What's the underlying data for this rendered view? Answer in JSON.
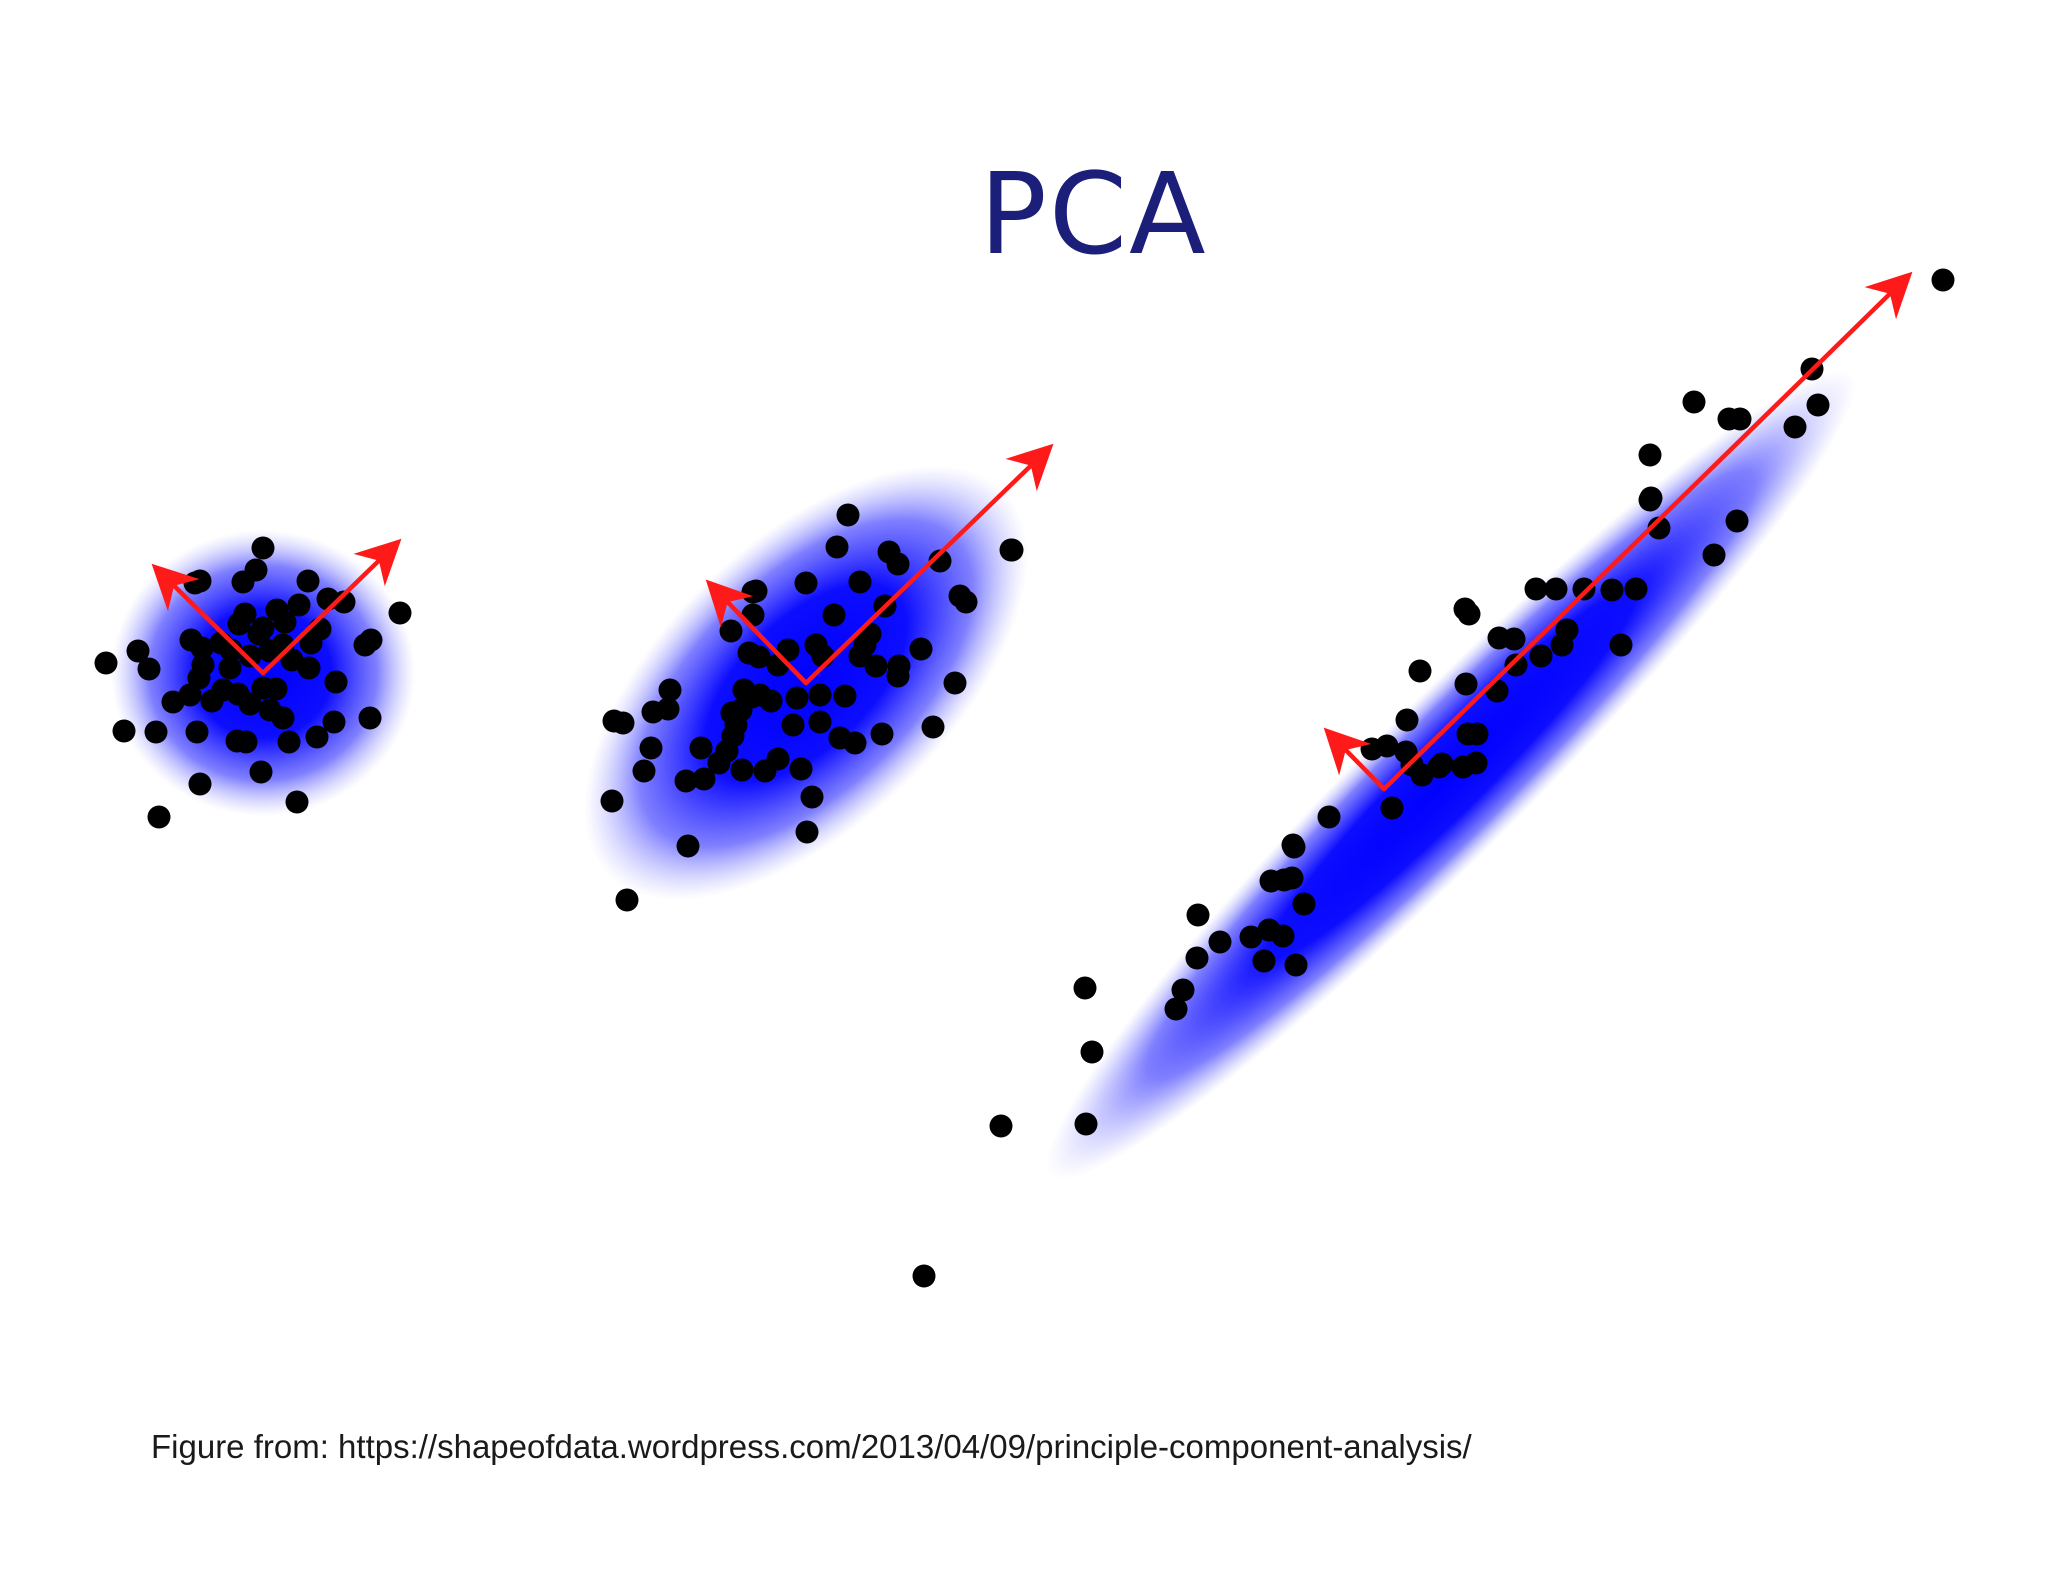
{
  "slide": {
    "title": "PCA",
    "caption": "Figure from: https://shapeofdata.wordpress.com/2013/04/09/principle-component-analysis/"
  },
  "colors": {
    "title": "#1b1f7a",
    "cloud_core": "#0000ff",
    "points": "#000000",
    "arrows": "#ff1a1a"
  },
  "icons": [
    "arrow-head-icon"
  ],
  "panels": [
    {
      "name": "round-cluster",
      "points": [
        [
          263,
          548
        ],
        [
          256,
          570
        ],
        [
          243,
          582
        ],
        [
          195,
          583
        ],
        [
          200,
          581
        ],
        [
          308,
          581
        ],
        [
          328,
          599
        ],
        [
          344,
          602
        ],
        [
          277,
          610
        ],
        [
          299,
          605
        ],
        [
          245,
          614
        ],
        [
          285,
          622
        ],
        [
          263,
          628
        ],
        [
          239,
          624
        ],
        [
          259,
          634
        ],
        [
          191,
          640
        ],
        [
          106,
          663
        ],
        [
          149,
          669
        ],
        [
          138,
          651
        ],
        [
          202,
          648
        ],
        [
          231,
          650
        ],
        [
          221,
          643
        ],
        [
          311,
          643
        ],
        [
          371,
          640
        ],
        [
          365,
          645
        ],
        [
          400,
          613
        ],
        [
          370,
          718
        ],
        [
          199,
          678
        ],
        [
          223,
          690
        ],
        [
          190,
          695
        ],
        [
          238,
          694
        ],
        [
          276,
          689
        ],
        [
          250,
          704
        ],
        [
          270,
          710
        ],
        [
          283,
          718
        ],
        [
          334,
          722
        ],
        [
          317,
          737
        ],
        [
          246,
          742
        ],
        [
          237,
          741
        ],
        [
          289,
          742
        ],
        [
          197,
          732
        ],
        [
          156,
          732
        ],
        [
          124,
          731
        ],
        [
          261,
          772
        ],
        [
          297,
          802
        ],
        [
          200,
          784
        ],
        [
          159,
          817
        ],
        [
          263,
          688
        ],
        [
          212,
          701
        ],
        [
          292,
          660
        ],
        [
          336,
          682
        ],
        [
          309,
          668
        ],
        [
          230,
          668
        ],
        [
          173,
          702
        ],
        [
          203,
          665
        ],
        [
          250,
          656
        ],
        [
          270,
          651
        ],
        [
          283,
          645
        ],
        [
          320,
          629
        ]
      ],
      "ellipse": {
        "cx": 263,
        "cy": 673,
        "rx": 152,
        "ry": 143,
        "angle": 0
      },
      "origin": [
        263,
        673
      ],
      "arrows": [
        [
          395,
          545
        ],
        [
          158,
          570
        ]
      ]
    },
    {
      "name": "tilted-cluster",
      "points": [
        [
          848,
          515
        ],
        [
          837,
          547
        ],
        [
          889,
          552
        ],
        [
          898,
          564
        ],
        [
          753,
          592
        ],
        [
          756,
          591
        ],
        [
          860,
          582
        ],
        [
          806,
          583
        ],
        [
          960,
          596
        ],
        [
          966,
          602
        ],
        [
          1011,
          550
        ],
        [
          1012,
          550
        ],
        [
          940,
          561
        ],
        [
          885,
          606
        ],
        [
          870,
          634
        ],
        [
          876,
          666
        ],
        [
          921,
          649
        ],
        [
          899,
          666
        ],
        [
          823,
          656
        ],
        [
          752,
          697
        ],
        [
          731,
          631
        ],
        [
          744,
          690
        ],
        [
          670,
          690
        ],
        [
          653,
          712
        ],
        [
          623,
          723
        ],
        [
          668,
          709
        ],
        [
          651,
          748
        ],
        [
          701,
          748
        ],
        [
          797,
          698
        ],
        [
          820,
          695
        ],
        [
          820,
          722
        ],
        [
          840,
          738
        ],
        [
          801,
          769
        ],
        [
          812,
          797
        ],
        [
          955,
          683
        ],
        [
          933,
          727
        ],
        [
          898,
          676
        ],
        [
          845,
          696
        ],
        [
          788,
          650
        ],
        [
          793,
          725
        ],
        [
          742,
          770
        ],
        [
          765,
          771
        ],
        [
          807,
          832
        ],
        [
          688,
          846
        ],
        [
          741,
          710
        ],
        [
          749,
          653
        ],
        [
          753,
          615
        ],
        [
          778,
          665
        ],
        [
          778,
          759
        ],
        [
          704,
          779
        ],
        [
          719,
          763
        ],
        [
          686,
          781
        ],
        [
          644,
          771
        ],
        [
          614,
          721
        ],
        [
          733,
          736
        ],
        [
          612,
          801
        ],
        [
          627,
          900
        ],
        [
          855,
          743
        ],
        [
          882,
          734
        ],
        [
          759,
          657
        ],
        [
          732,
          713
        ],
        [
          760,
          695
        ],
        [
          816,
          645
        ],
        [
          834,
          615
        ],
        [
          860,
          656
        ],
        [
          771,
          701
        ],
        [
          727,
          751
        ],
        [
          736,
          725
        ],
        [
          865,
          645
        ]
      ],
      "ellipse": {
        "cx": 806,
        "cy": 683,
        "rx": 276,
        "ry": 142,
        "angle": -44
      },
      "origin": [
        806,
        683
      ],
      "arrows": [
        [
          1047,
          450
        ],
        [
          712,
          586
        ]
      ]
    },
    {
      "name": "elongated-cluster",
      "points": [
        [
          1943,
          280
        ],
        [
          1812,
          369
        ],
        [
          1818,
          405
        ],
        [
          1795,
          427
        ],
        [
          1729,
          419
        ],
        [
          1740,
          419
        ],
        [
          1694,
          402
        ],
        [
          1650,
          455
        ],
        [
          1714,
          555
        ],
        [
          1651,
          498
        ],
        [
          1659,
          528
        ],
        [
          1612,
          590
        ],
        [
          1636,
          589
        ],
        [
          1556,
          589
        ],
        [
          1536,
          589
        ],
        [
          1465,
          609
        ],
        [
          1469,
          614
        ],
        [
          1514,
          639
        ],
        [
          1562,
          645
        ],
        [
          1516,
          665
        ],
        [
          1497,
          691
        ],
        [
          1420,
          671
        ],
        [
          1407,
          720
        ],
        [
          1466,
          684
        ],
        [
          1468,
          734
        ],
        [
          1406,
          752
        ],
        [
          1463,
          767
        ],
        [
          1439,
          767
        ],
        [
          1372,
          749
        ],
        [
          1412,
          765
        ],
        [
          1422,
          775
        ],
        [
          1392,
          808
        ],
        [
          1329,
          817
        ],
        [
          1292,
          878
        ],
        [
          1294,
          847
        ],
        [
          1271,
          881
        ],
        [
          1284,
          880
        ],
        [
          1198,
          915
        ],
        [
          1220,
          942
        ],
        [
          1269,
          930
        ],
        [
          1304,
          904
        ],
        [
          1283,
          936
        ],
        [
          1296,
          965
        ],
        [
          1293,
          845
        ],
        [
          1251,
          937
        ],
        [
          1264,
          961
        ],
        [
          1197,
          958
        ],
        [
          1183,
          990
        ],
        [
          1176,
          1009
        ],
        [
          1092,
          1052
        ],
        [
          1086,
          1124
        ],
        [
          1001,
          1126
        ],
        [
          1085,
          988
        ],
        [
          924,
          1276
        ],
        [
          1477,
          734
        ],
        [
          1476,
          763
        ],
        [
          1442,
          764
        ],
        [
          1387,
          746
        ],
        [
          1541,
          656
        ],
        [
          1499,
          638
        ],
        [
          1567,
          630
        ],
        [
          1584,
          589
        ],
        [
          1621,
          645
        ],
        [
          1650,
          500
        ],
        [
          1737,
          521
        ]
      ],
      "ellipse": {
        "cx": 1451,
        "cy": 775,
        "rx": 567,
        "ry": 78,
        "angle": -45
      },
      "origin": [
        1384,
        789
      ],
      "arrows": [
        [
          1906,
          278
        ],
        [
          1330,
          734
        ]
      ]
    }
  ]
}
